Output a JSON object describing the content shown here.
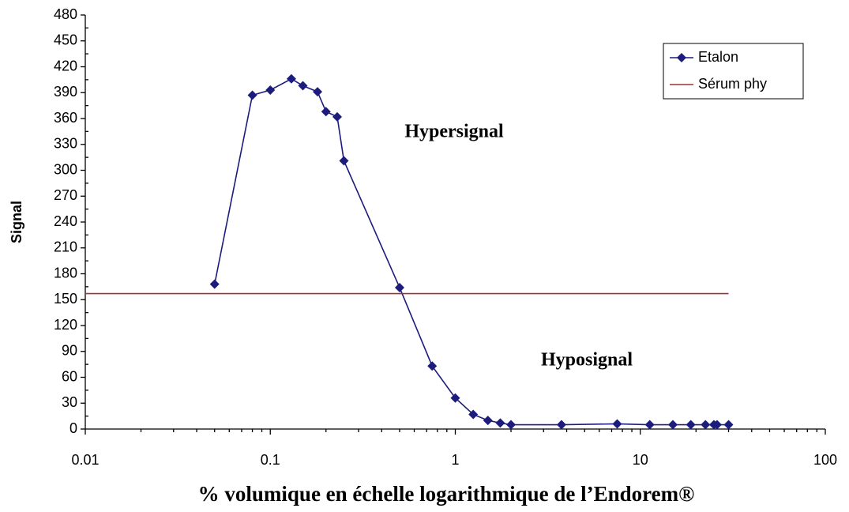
{
  "chart_data": {
    "type": "line",
    "y_label": "Signal",
    "x_label": "% volumique en échelle logarithmique de l’Endorem®",
    "annotations": [
      "Hypersignal",
      "Hyposignal"
    ],
    "x_log": true,
    "xlim": [
      0.01,
      100
    ],
    "xticks": [
      0.01,
      0.1,
      1,
      10,
      100
    ],
    "ylim": [
      0,
      480
    ],
    "yticks": [
      0,
      30,
      60,
      90,
      120,
      150,
      180,
      210,
      240,
      270,
      300,
      330,
      360,
      390,
      420,
      450,
      480
    ],
    "grid": false,
    "legend": "top-right",
    "series": [
      {
        "name": "Etalon",
        "color": "#1c1c7c",
        "markers": true,
        "x": [
          0.05,
          0.08,
          0.1,
          0.13,
          0.15,
          0.18,
          0.2,
          0.23,
          0.25,
          0.5,
          0.75,
          1,
          1.25,
          1.5,
          1.75,
          2,
          3.75,
          7.5,
          11.25,
          15,
          18.75,
          22.5,
          25,
          26,
          30
        ],
        "values": [
          168,
          387,
          393,
          406,
          398,
          391,
          368,
          362,
          311,
          164,
          73,
          36,
          17,
          10,
          7,
          5,
          5,
          6,
          5,
          5,
          5,
          5,
          5,
          5,
          5
        ]
      },
      {
        "name": "Sérum phy",
        "color": "#a03232",
        "markers": false,
        "x": [
          0.01,
          30
        ],
        "values": [
          157,
          157
        ]
      }
    ]
  }
}
